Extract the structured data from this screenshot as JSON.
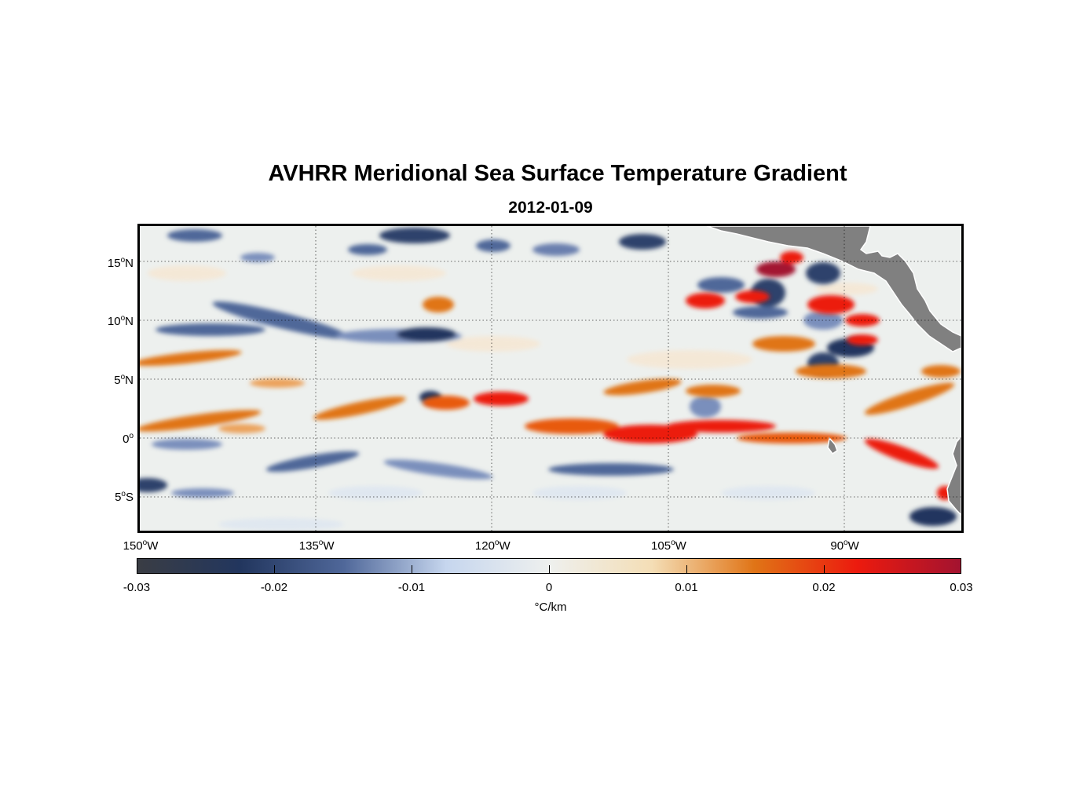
{
  "title": "AVHRR Meridional Sea Surface Temperature Gradient",
  "subtitle": "2012-01-09",
  "map": {
    "extent": {
      "lon_min": -150,
      "lon_max": -80,
      "lat_min": -8,
      "lat_max": 18
    },
    "gridlines": true,
    "land_color": "#808080",
    "ocean_background": "#edf0ee",
    "lat_ticks": [
      {
        "lat": 15,
        "num": "15",
        "hemi": "N"
      },
      {
        "lat": 10,
        "num": "10",
        "hemi": "N"
      },
      {
        "lat": 5,
        "num": "5",
        "hemi": "N"
      },
      {
        "lat": 0,
        "num": "0",
        "hemi": ""
      },
      {
        "lat": -5,
        "num": "5",
        "hemi": "S"
      }
    ],
    "lon_ticks": [
      {
        "lon": -150,
        "num": "150",
        "hemi": "W"
      },
      {
        "lon": -135,
        "num": "135",
        "hemi": "W"
      },
      {
        "lon": -120,
        "num": "120",
        "hemi": "W"
      },
      {
        "lon": -105,
        "num": "105",
        "hemi": "W"
      },
      {
        "lon": -90,
        "num": "90",
        "hemi": "W"
      }
    ]
  },
  "colorbar": {
    "min": -0.03,
    "max": 0.03,
    "ticks": [
      "-0.03",
      "-0.02",
      "-0.01",
      "0",
      "0.01",
      "0.02",
      "0.03"
    ],
    "unit": "°C/km",
    "stops": [
      "#3a3d44",
      "#22365e",
      "#4f6799",
      "#c6d6ee",
      "#eef0ee",
      "#f4deb6",
      "#e07416",
      "#ec1a0e",
      "#a31330"
    ]
  }
}
